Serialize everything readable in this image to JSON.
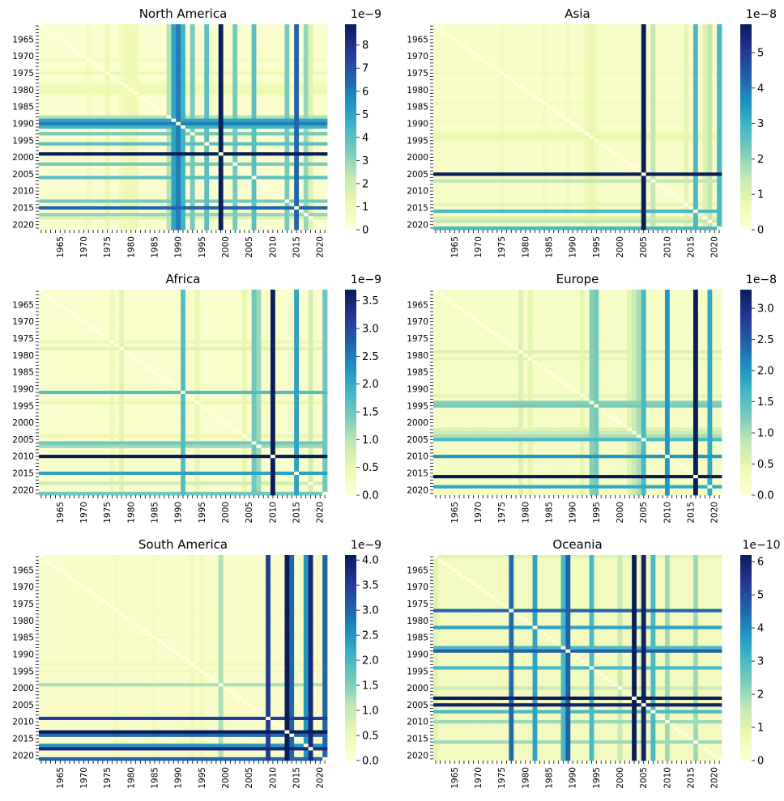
{
  "colormap": "YlGnBu",
  "colormap_stops": [
    "#ffffd9",
    "#edf8b1",
    "#c7e9b4",
    "#7fcdbb",
    "#41b6c4",
    "#1d91c0",
    "#225ea8",
    "#253494",
    "#081d58"
  ],
  "year_range": [
    1961,
    2021
  ],
  "tick_years": [
    1965,
    1970,
    1975,
    1980,
    1985,
    1990,
    1995,
    2000,
    2005,
    2010,
    2015,
    2020
  ],
  "chart_data": [
    {
      "type": "heatmap",
      "title": "North America",
      "x_tick_labels": [
        "1965",
        "1970",
        "1975",
        "1980",
        "1985",
        "1990",
        "1995",
        "2000",
        "2005",
        "2010",
        "2015",
        "2020"
      ],
      "y_tick_labels": [
        "1965",
        "1970",
        "1975",
        "1980",
        "1985",
        "1990",
        "1995",
        "2000",
        "2005",
        "2010",
        "2015",
        "2020"
      ],
      "colorbar_exponent": "1e−9",
      "colorbar_ticks": [
        "0",
        "1",
        "2",
        "3",
        "4",
        "5",
        "6",
        "7",
        "8"
      ],
      "vmax": 8.9,
      "base": 0.3,
      "band_years": [
        1971,
        1975,
        1978,
        1979,
        1980,
        1981,
        1988,
        1989,
        1990,
        1991,
        1993,
        1996,
        1999,
        2002,
        2006,
        2013,
        2015,
        2017,
        2018
      ],
      "band_values": [
        0.7,
        1.1,
        0.8,
        1.0,
        1.0,
        1.0,
        2.5,
        5.0,
        6.0,
        4.5,
        3.5,
        4.0,
        8.9,
        3.5,
        4.0,
        3.5,
        6.5,
        3.0,
        1.5
      ]
    },
    {
      "type": "heatmap",
      "title": "Asia",
      "x_tick_labels": [
        "1965",
        "1970",
        "1975",
        "1980",
        "1985",
        "1990",
        "1995",
        "2000",
        "2005",
        "2010",
        "2015",
        "2020"
      ],
      "y_tick_labels": [
        "1965",
        "1970",
        "1975",
        "1980",
        "1985",
        "1990",
        "1995",
        "2000",
        "2005",
        "2010",
        "2015",
        "2020"
      ],
      "colorbar_exponent": "1e−8",
      "colorbar_ticks": [
        "0",
        "1",
        "2",
        "3",
        "4",
        "5"
      ],
      "vmax": 5.8,
      "base": 0.3,
      "band_years": [
        1975,
        1984,
        1989,
        1993,
        1994,
        1995,
        2005,
        2007,
        2014,
        2016,
        2018,
        2019,
        2021
      ],
      "band_values": [
        0.5,
        0.5,
        0.5,
        0.7,
        0.8,
        0.6,
        5.8,
        1.5,
        0.9,
        2.8,
        1.0,
        1.5,
        2.8
      ]
    },
    {
      "type": "heatmap",
      "title": "Africa",
      "x_tick_labels": [
        "1965",
        "1970",
        "1975",
        "1980",
        "1985",
        "1990",
        "1995",
        "2000",
        "2005",
        "2010",
        "2015",
        "2020"
      ],
      "y_tick_labels": [
        "1965",
        "1970",
        "1975",
        "1980",
        "1985",
        "1990",
        "1995",
        "2000",
        "2005",
        "2010",
        "2015",
        "2020"
      ],
      "colorbar_exponent": "1e−9",
      "colorbar_ticks": [
        "0.0",
        "0.5",
        "1.0",
        "1.5",
        "2.0",
        "2.5",
        "3.0",
        "3.5"
      ],
      "vmax": 3.7,
      "base": 0.15,
      "band_years": [
        1976,
        1978,
        1991,
        1994,
        2004,
        2006,
        2007,
        2010,
        2015,
        2018,
        2021
      ],
      "band_values": [
        0.4,
        0.6,
        1.7,
        0.5,
        0.5,
        1.5,
        1.2,
        3.7,
        2.1,
        0.8,
        1.5
      ]
    },
    {
      "type": "heatmap",
      "title": "Europe",
      "x_tick_labels": [
        "1965",
        "1970",
        "1975",
        "1980",
        "1985",
        "1990",
        "1995",
        "2000",
        "2005",
        "2010",
        "2015",
        "2020"
      ],
      "y_tick_labels": [
        "1965",
        "1970",
        "1975",
        "1980",
        "1985",
        "1990",
        "1995",
        "2000",
        "2005",
        "2010",
        "2015",
        "2020"
      ],
      "colorbar_exponent": "1e−8",
      "colorbar_ticks": [
        "0.0",
        "0.5",
        "1.0",
        "1.5",
        "2.0",
        "2.5",
        "3.0"
      ],
      "vmax": 3.3,
      "base": 0.2,
      "band_years": [
        1979,
        1981,
        1992,
        1994,
        1995,
        2002,
        2003,
        2004,
        2005,
        2010,
        2016,
        2019
      ],
      "band_values": [
        0.6,
        0.5,
        0.5,
        1.2,
        1.3,
        0.6,
        0.8,
        1.0,
        1.6,
        2.0,
        3.3,
        1.8
      ]
    },
    {
      "type": "heatmap",
      "title": "South America",
      "x_tick_labels": [
        "1965",
        "1970",
        "1975",
        "1980",
        "1985",
        "1990",
        "1995",
        "2000",
        "2005",
        "2010",
        "2015",
        "2020"
      ],
      "y_tick_labels": [
        "1965",
        "1970",
        "1975",
        "1980",
        "1985",
        "1990",
        "1995",
        "2000",
        "2005",
        "2010",
        "2015",
        "2020"
      ],
      "colorbar_exponent": "1e−9",
      "colorbar_ticks": [
        "0.0",
        "0.5",
        "1.0",
        "1.5",
        "2.0",
        "2.5",
        "3.0",
        "3.5",
        "4.0"
      ],
      "vmax": 4.1,
      "base": 0.2,
      "band_years": [
        1977,
        1985,
        1993,
        1995,
        1999,
        2009,
        2013,
        2014,
        2017,
        2018,
        2021
      ],
      "band_values": [
        0.3,
        0.3,
        0.4,
        0.4,
        1.2,
        3.5,
        4.1,
        3.0,
        2.5,
        3.8,
        3.0
      ]
    },
    {
      "type": "heatmap",
      "title": "Oceania",
      "x_tick_labels": [
        "1965",
        "1970",
        "1975",
        "1980",
        "1985",
        "1990",
        "1995",
        "2000",
        "2005",
        "2010",
        "2015",
        "2020"
      ],
      "y_tick_labels": [
        "1965",
        "1970",
        "1975",
        "1980",
        "1985",
        "1990",
        "1995",
        "2000",
        "2005",
        "2010",
        "2015",
        "2020"
      ],
      "colorbar_exponent": "1e−10",
      "colorbar_ticks": [
        "0",
        "1",
        "2",
        "3",
        "4",
        "5",
        "6"
      ],
      "vmax": 6.2,
      "base": 0.5,
      "band_years": [
        1961,
        1977,
        1982,
        1988,
        1989,
        1994,
        2000,
        2003,
        2005,
        2007,
        2010,
        2016
      ],
      "band_values": [
        1.0,
        4.5,
        3.5,
        3.0,
        4.6,
        3.0,
        1.5,
        6.2,
        6.0,
        3.0,
        2.0,
        2.0
      ]
    }
  ]
}
